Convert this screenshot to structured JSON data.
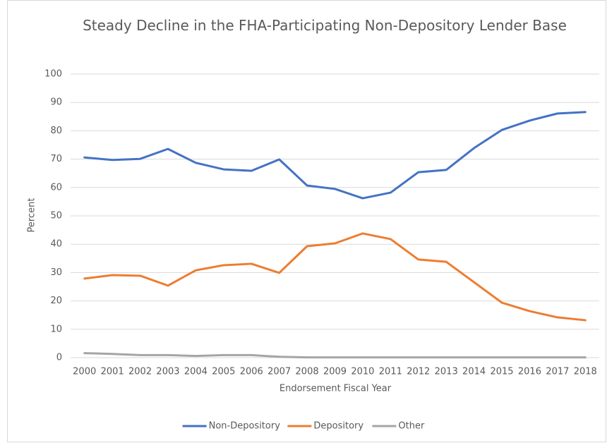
{
  "chart_data": {
    "type": "line",
    "title": "Steady Decline in the FHA-Participating Non-Depository Lender Base",
    "x_label": "Endorsement Fiscal Year",
    "y_label": "Percent",
    "categories": [
      "2000",
      "2001",
      "2002",
      "2003",
      "2004",
      "2005",
      "2006",
      "2007",
      "2008",
      "2009",
      "2010",
      "2011",
      "2012",
      "2013",
      "2014",
      "2015",
      "2016",
      "2017",
      "2018"
    ],
    "series": [
      {
        "name": "Non-Depository",
        "color": "#4472c4",
        "values": [
          70.6,
          69.7,
          70.1,
          73.6,
          68.7,
          66.4,
          65.9,
          69.9,
          60.7,
          59.5,
          56.2,
          58.2,
          65.4,
          66.2,
          73.9,
          80.3,
          83.6,
          86.1,
          86.6
        ]
      },
      {
        "name": "Depository",
        "color": "#ed7d31",
        "values": [
          27.9,
          29.1,
          28.9,
          25.4,
          30.8,
          32.6,
          33.1,
          29.9,
          39.3,
          40.3,
          43.8,
          41.8,
          34.6,
          33.8,
          26.6,
          19.4,
          16.4,
          14.2,
          13.2
        ]
      },
      {
        "name": "Other",
        "color": "#a5a5a5",
        "values": [
          1.6,
          1.3,
          0.9,
          0.9,
          0.6,
          0.9,
          0.9,
          0.3,
          0.1,
          0.1,
          0.1,
          0.1,
          0.1,
          0.1,
          0.1,
          0.1,
          0.1,
          0.1,
          0.1
        ]
      }
    ],
    "ylim": [
      0,
      100
    ],
    "yticks": [
      0,
      10,
      20,
      30,
      40,
      50,
      60,
      70,
      80,
      90,
      100
    ],
    "grid": true,
    "legend": "bottom"
  }
}
